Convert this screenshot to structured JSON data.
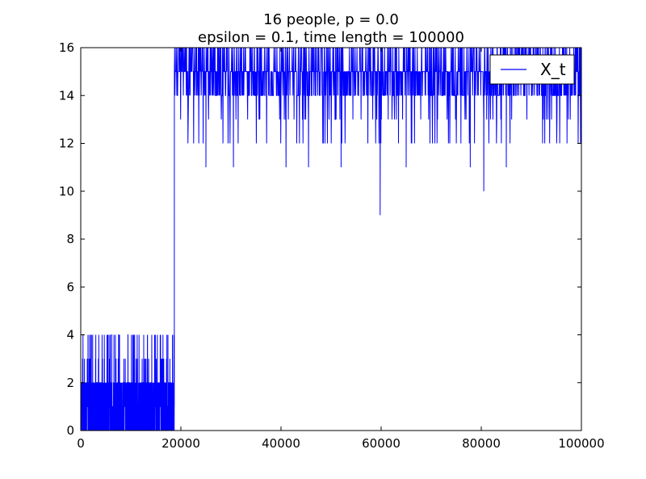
{
  "chart_data": {
    "type": "line",
    "title_lines": [
      "16 people,  p = 0.0",
      "epsilon = 0.1,  time length = 100000"
    ],
    "xlabel": "",
    "ylabel": "",
    "xlim": [
      0,
      100000
    ],
    "ylim": [
      0,
      16
    ],
    "x_ticks": [
      0,
      20000,
      40000,
      60000,
      80000,
      100000
    ],
    "y_ticks": [
      0,
      2,
      4,
      6,
      8,
      10,
      12,
      14,
      16
    ],
    "grid": false,
    "legend": {
      "position": "top-right",
      "entries": [
        "X_t"
      ]
    },
    "series": [
      {
        "name": "X_t",
        "color": "#0000ff",
        "regimes": [
          {
            "x_start": 0,
            "x_end": 18700,
            "band_low": 0,
            "band_high": 2,
            "spike_values": [
              3,
              4
            ],
            "dip_values": [
              1
            ]
          },
          {
            "x_start": 18700,
            "x_end": 100000,
            "band_low": 14,
            "band_high": 16,
            "spike_values": [
              13,
              12
            ],
            "dip_values": [
              11,
              10,
              9
            ]
          }
        ],
        "notable_points": [
          {
            "x": 18700,
            "y": 15
          },
          {
            "x": 25000,
            "y": 11
          },
          {
            "x": 30500,
            "y": 11
          },
          {
            "x": 40200,
            "y": 15
          },
          {
            "x": 41000,
            "y": 11
          },
          {
            "x": 45500,
            "y": 11
          },
          {
            "x": 52000,
            "y": 11
          },
          {
            "x": 59800,
            "y": 9
          },
          {
            "x": 65000,
            "y": 11
          },
          {
            "x": 77800,
            "y": 11
          },
          {
            "x": 80500,
            "y": 10
          },
          {
            "x": 85000,
            "y": 11
          }
        ]
      }
    ]
  }
}
